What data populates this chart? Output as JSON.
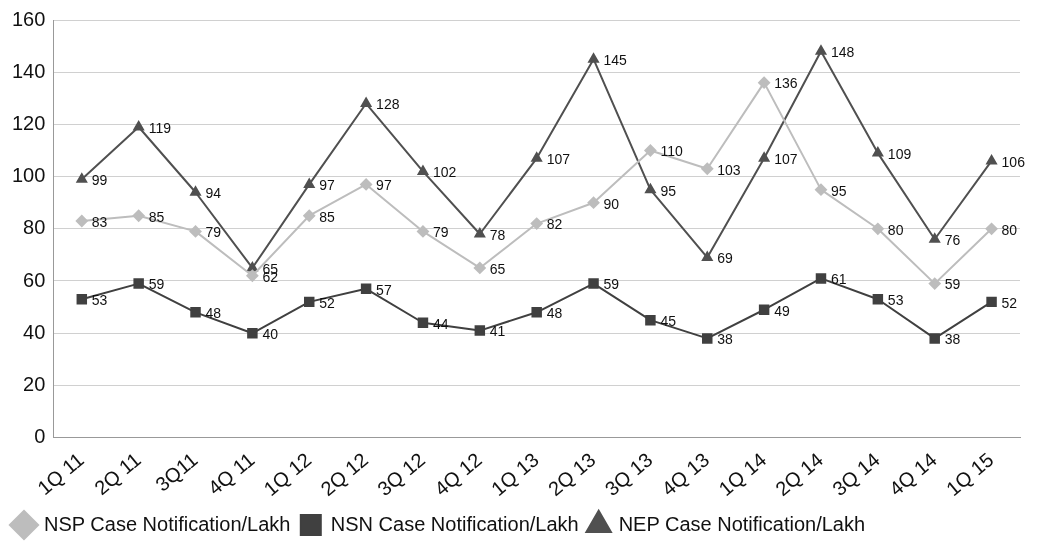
{
  "chart_data": {
    "type": "line",
    "categories": [
      "1Q 11",
      "2Q 11",
      "3Q11",
      "4Q 11",
      "1Q 12",
      "2Q 12",
      "3Q 12",
      "4Q 12",
      "1Q 13",
      "2Q 13",
      "3Q 13",
      "4Q 13",
      "1Q 14",
      "2Q 14",
      "3Q 14",
      "4Q 14",
      "1Q 15"
    ],
    "series": [
      {
        "name": "NSP Case Notification/Lakh",
        "color": "#bdbdbd",
        "marker": "diamond",
        "values": [
          83,
          85,
          79,
          62,
          85,
          97,
          79,
          65,
          82,
          90,
          110,
          103,
          136,
          95,
          80,
          59,
          80
        ]
      },
      {
        "name": "NSN Case Notification/Lakh",
        "color": "#404040",
        "marker": "square",
        "values": [
          53,
          59,
          48,
          40,
          52,
          57,
          44,
          41,
          48,
          59,
          45,
          38,
          49,
          61,
          53,
          38,
          52
        ]
      },
      {
        "name": "NEP Case Notification/Lakh",
        "color": "#505050",
        "marker": "triangle",
        "values": [
          99,
          119,
          94,
          65,
          97,
          128,
          102,
          78,
          107,
          145,
          95,
          69,
          107,
          148,
          109,
          76,
          106
        ]
      }
    ],
    "ylim": [
      0,
      160
    ],
    "yticks": [
      0,
      20,
      40,
      60,
      80,
      100,
      120,
      140,
      160
    ],
    "grid": "y",
    "legend": "bottom",
    "data_labels": true
  }
}
